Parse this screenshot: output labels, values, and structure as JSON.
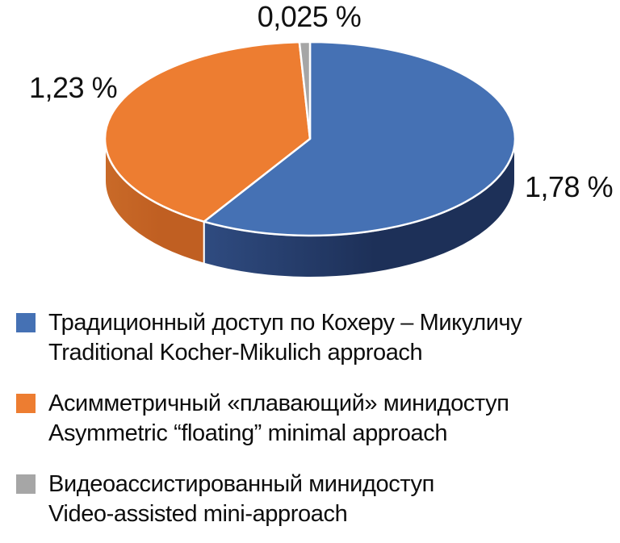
{
  "chart_data": {
    "type": "pie",
    "style": "3d",
    "direction": "clockwise",
    "start_angle_deg": 0,
    "legend_position": "bottom",
    "background_color": "#FFFFFF",
    "title": "",
    "slices": [
      {
        "id": "traditional",
        "legend_ru": "Традиционный доступ по Кохеру – Микуличу",
        "legend_en": "Traditional Kocher-Mikulich approach",
        "value": 1.78,
        "data_label": "1,78 %",
        "color": "#4571B4",
        "side_color": "#1D3058",
        "side_color_light": "#2F4B80"
      },
      {
        "id": "asymmetric-floating",
        "legend_ru": "Асимметричный «плавающий» минидоступ",
        "legend_en": "Asymmetric “floating” minimal approach",
        "value": 1.23,
        "data_label": "1,23 %",
        "color": "#ED7D31",
        "side_color": "#C05F22",
        "side_color_light": "#C96A28"
      },
      {
        "id": "video-assisted",
        "legend_ru": "Видеоассистированный минидоступ",
        "legend_en": "Video-assisted mini-approach",
        "value": 0.025,
        "data_label": "0,025 %",
        "color": "#A6A6A6",
        "side_color": "#7F7F7F",
        "side_color_light": "#8F8F8F"
      }
    ]
  }
}
